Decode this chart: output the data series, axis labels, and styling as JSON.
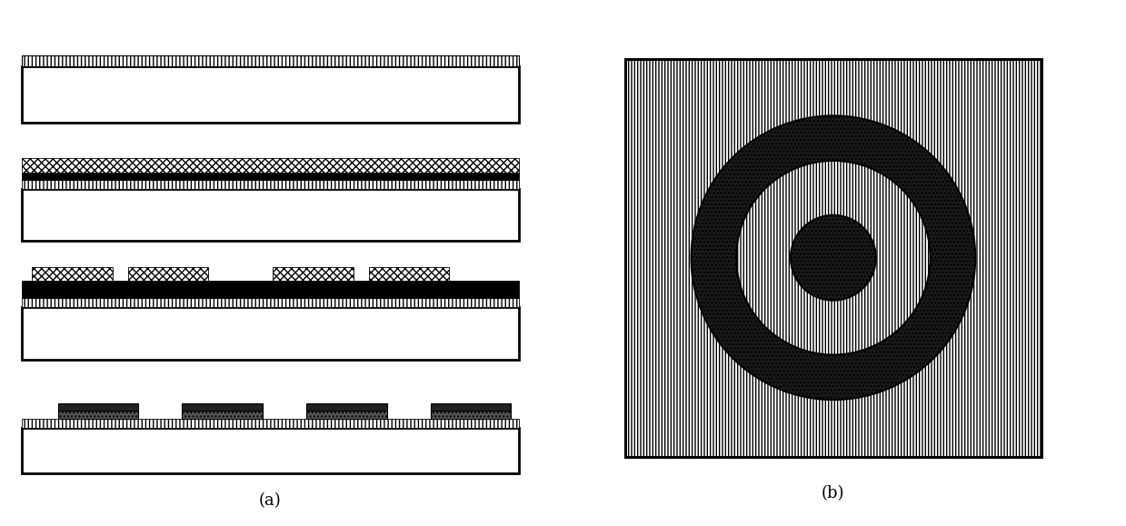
{
  "fig_width": 12.39,
  "fig_height": 5.79,
  "bg_color": "#ffffff",
  "label_a": "(a)",
  "label_b": "(b)"
}
